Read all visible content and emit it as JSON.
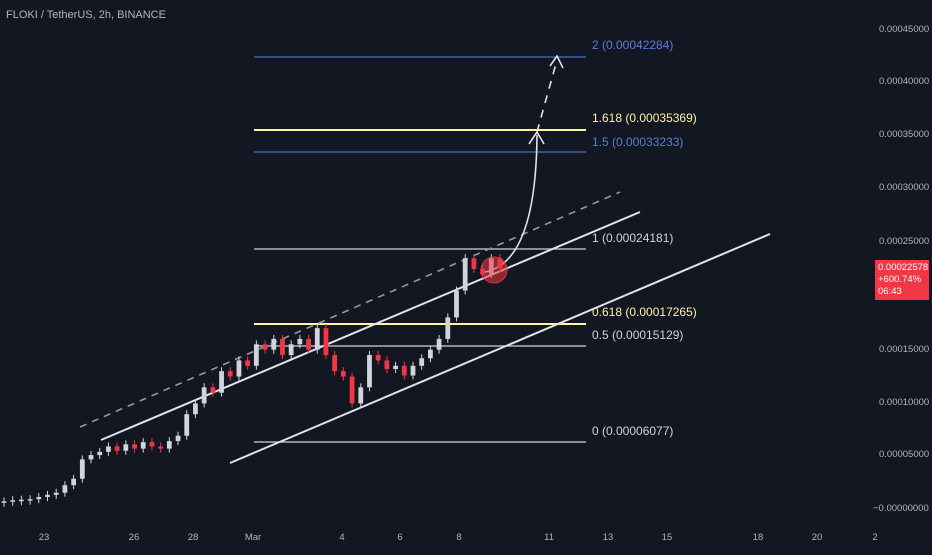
{
  "header": {
    "symbol_title": "FLOKI / TetherUS, 2h, BINANCE"
  },
  "price_badge": {
    "price": "0.00022578",
    "change": "+600.74%",
    "countdown": "06:43",
    "color": "#f23645"
  },
  "colors": {
    "background": "#131722",
    "up_candle": "#d1d4dc",
    "down_candle": "#f23645",
    "fib_white": "#d1d4dc",
    "fib_yellow": "#fff59d",
    "fib_blue": "#3f5fae",
    "channel": "#e0e3eb"
  },
  "chart_data": {
    "type": "candlestick",
    "x_tick_labels": [
      "23",
      "26",
      "28",
      "Mar",
      "4",
      "6",
      "8",
      "11",
      "13",
      "15",
      "18",
      "20",
      "2"
    ],
    "y_tick_labels": [
      "0.00045000",
      "0.00040000",
      "0.00035000",
      "0.00030000",
      "0.00025000",
      "0.00015000",
      "0.00010000",
      "0.00005000",
      "−0.00000000"
    ],
    "y_range": [
      -1e-05,
      0.00047
    ],
    "grid": false,
    "fib_levels": [
      {
        "ratio": "0",
        "price": 6.077e-05,
        "label": "0 (0.00006077)",
        "color": "#d1d4dc"
      },
      {
        "ratio": "0.5",
        "price": 0.00015129,
        "label": "0.5 (0.00015129)",
        "color": "#d1d4dc"
      },
      {
        "ratio": "0.618",
        "price": 0.00017265,
        "label": "0.618 (0.00017265)",
        "color": "#fff59d"
      },
      {
        "ratio": "1",
        "price": 0.00024181,
        "label": "1 (0.00024181)",
        "color": "#d1d4dc"
      },
      {
        "ratio": "1.5",
        "price": 0.00033233,
        "label": "1.5 (0.00033233)",
        "color": "#5b7fd6"
      },
      {
        "ratio": "1.618",
        "price": 0.00035369,
        "label": "1.618 (0.00035369)",
        "color": "#fff59d"
      },
      {
        "ratio": "2",
        "price": 0.00042284,
        "label": "2 (0.00042284)",
        "color": "#5b7fd6"
      }
    ],
    "candles_approx": [
      [
        8.5e-06,
        9e-06
      ],
      [
        9e-06,
        1e-05
      ],
      [
        1e-05,
        1.05e-05
      ],
      [
        1.05e-05,
        1.1e-05
      ],
      [
        1.1e-05,
        1.3e-05
      ],
      [
        1.3e-05,
        1.5e-05
      ],
      [
        1.5e-05,
        1.7e-05
      ],
      [
        1.7e-05,
        2.4e-05
      ],
      [
        2.4e-05,
        3e-05
      ],
      [
        3e-05,
        4.8e-05
      ],
      [
        4.8e-05,
        5.2e-05
      ],
      [
        5.2e-05,
        5.5e-05
      ],
      [
        5.5e-05,
        6e-05
      ],
      [
        6e-05,
        5.6e-05
      ],
      [
        5.6e-05,
        6.2e-05
      ],
      [
        6.2e-05,
        5.8e-05
      ],
      [
        5.8e-05,
        6.4e-05
      ],
      [
        6.4e-05,
        6e-05
      ],
      [
        6e-05,
        5.8e-05
      ],
      [
        5.8e-05,
        6.5e-05
      ],
      [
        6.5e-05,
        7e-05
      ],
      [
        7e-05,
        9e-05
      ],
      [
        9e-05,
        0.0001
      ],
      [
        0.0001,
        0.000115
      ],
      [
        0.000115,
        0.00011
      ],
      [
        0.00011,
        0.00013
      ],
      [
        0.00013,
        0.000125
      ],
      [
        0.000125,
        0.00014
      ],
      [
        0.00014,
        0.000135
      ],
      [
        0.000135,
        0.000155
      ],
      [
        0.000155,
        0.00015
      ],
      [
        0.00015,
        0.00016
      ],
      [
        0.00016,
        0.000145
      ],
      [
        0.000145,
        0.000155
      ],
      [
        0.000155,
        0.00016
      ],
      [
        0.00016,
        0.00015
      ],
      [
        0.00015,
        0.00017
      ],
      [
        0.00017,
        0.000145
      ],
      [
        0.000145,
        0.00013
      ],
      [
        0.00013,
        0.000125
      ],
      [
        0.000125,
        0.0001
      ],
      [
        0.0001,
        0.000115
      ],
      [
        0.000115,
        0.000145
      ],
      [
        0.000145,
        0.00014
      ],
      [
        0.00014,
        0.000132
      ],
      [
        0.000132,
        0.000135
      ],
      [
        0.000135,
        0.000126
      ],
      [
        0.000126,
        0.000135
      ],
      [
        0.000135,
        0.000142
      ],
      [
        0.000142,
        0.00015
      ],
      [
        0.00015,
        0.00016
      ],
      [
        0.00016,
        0.00018
      ],
      [
        0.00018,
        0.000205
      ],
      [
        0.000205,
        0.000235
      ],
      [
        0.000235,
        0.000225
      ],
      [
        0.000225,
        0.00022
      ],
      [
        0.00022,
        0.000235
      ],
      [
        0.000235,
        0.0002258
      ]
    ]
  }
}
